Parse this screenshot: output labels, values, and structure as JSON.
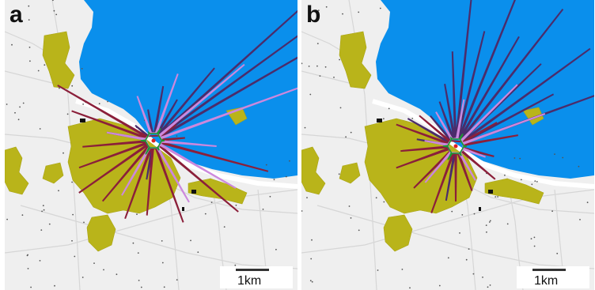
{
  "panels": [
    {
      "label": "a",
      "scale_label": "1km"
    },
    {
      "label": "b",
      "scale_label": "1km"
    }
  ],
  "colors": {
    "sea": "#0a8fec",
    "land": "#efefef",
    "urban_area": "#b9b41a",
    "road": "#d6d6d6",
    "plume_dark": "#4b2c6b",
    "plume_red": "#8b1f3a",
    "plume_lilac": "#cc88dd",
    "plume_green": "#1a9a32"
  }
}
